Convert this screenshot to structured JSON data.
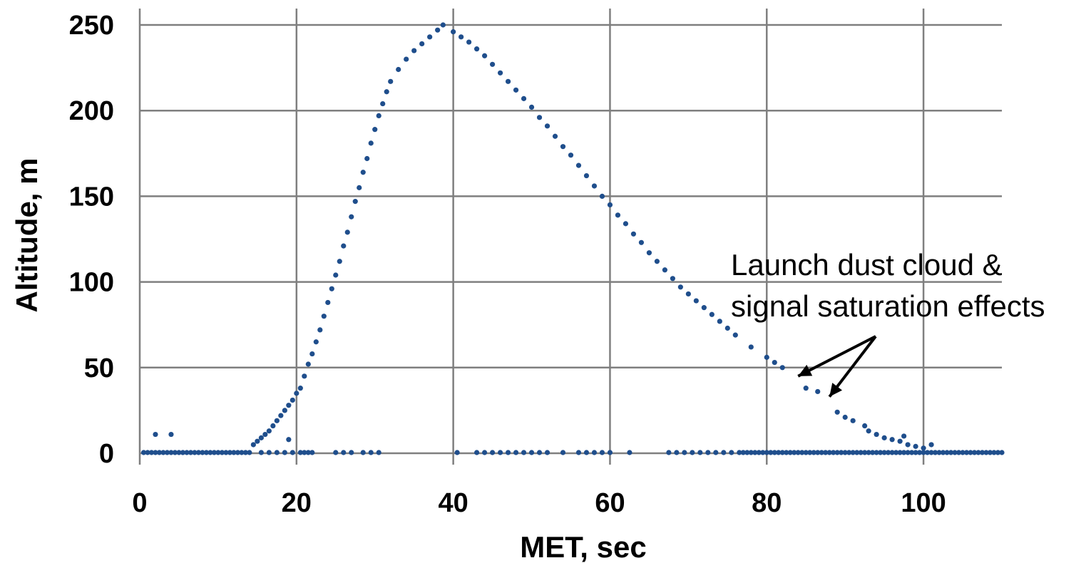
{
  "chart_data": {
    "type": "scatter",
    "xlabel": "MET, sec",
    "ylabel": "Altitude, m",
    "xlim": [
      0,
      110
    ],
    "ylim": [
      0,
      250
    ],
    "x_ticks": [
      "0",
      "20",
      "40",
      "60",
      "80",
      "100"
    ],
    "y_ticks": [
      "0",
      "50",
      "100",
      "150",
      "200",
      "250"
    ],
    "grid": true,
    "color": "#1f4e8c",
    "annotation": {
      "lines": [
        "Launch dust cloud &",
        "signal saturation effects"
      ],
      "arrow_targets": [
        [
          84,
          45
        ],
        [
          88,
          33
        ]
      ]
    },
    "trajectory": [
      [
        14.5,
        5
      ],
      [
        15,
        7
      ],
      [
        15.5,
        9
      ],
      [
        16,
        11
      ],
      [
        16.5,
        13
      ],
      [
        17,
        16
      ],
      [
        17.5,
        19
      ],
      [
        18,
        22
      ],
      [
        18.5,
        25
      ],
      [
        19,
        28
      ],
      [
        19.5,
        31
      ],
      [
        20,
        35
      ],
      [
        20.5,
        38
      ],
      [
        21,
        45
      ],
      [
        21.5,
        52
      ],
      [
        22,
        58
      ],
      [
        22.5,
        65
      ],
      [
        23,
        72
      ],
      [
        23.5,
        80
      ],
      [
        24,
        88
      ],
      [
        24.5,
        96
      ],
      [
        25,
        104
      ],
      [
        25.5,
        112
      ],
      [
        26,
        121
      ],
      [
        26.5,
        129
      ],
      [
        27,
        138
      ],
      [
        27.5,
        147
      ],
      [
        28,
        155
      ],
      [
        28.5,
        164
      ],
      [
        29,
        172
      ],
      [
        29.5,
        181
      ],
      [
        30,
        189
      ],
      [
        30.5,
        197
      ],
      [
        31,
        204
      ],
      [
        31.5,
        211
      ],
      [
        32,
        217
      ],
      [
        33,
        224
      ],
      [
        34,
        230
      ],
      [
        35,
        235
      ],
      [
        36,
        239
      ],
      [
        37,
        243
      ],
      [
        38,
        247
      ],
      [
        38.7,
        250
      ],
      [
        40,
        246
      ],
      [
        41,
        243
      ],
      [
        42,
        240
      ],
      [
        43,
        236
      ],
      [
        44,
        232
      ],
      [
        45,
        227
      ],
      [
        46,
        222
      ],
      [
        47,
        217
      ],
      [
        48,
        212
      ],
      [
        49,
        207
      ],
      [
        50,
        202
      ],
      [
        51,
        196
      ],
      [
        52,
        191
      ],
      [
        53,
        185
      ],
      [
        54,
        179
      ],
      [
        55,
        174
      ],
      [
        56,
        168
      ],
      [
        57,
        162
      ],
      [
        58,
        156
      ],
      [
        59,
        150
      ],
      [
        60,
        145
      ],
      [
        61,
        139
      ],
      [
        62,
        134
      ],
      [
        63,
        128
      ],
      [
        64,
        123
      ],
      [
        65,
        117
      ],
      [
        66,
        112
      ],
      [
        67,
        107
      ],
      [
        68,
        102
      ],
      [
        69,
        97
      ],
      [
        70,
        93
      ],
      [
        71,
        89
      ],
      [
        72,
        85
      ],
      [
        73,
        81
      ],
      [
        74,
        77
      ],
      [
        75,
        73
      ],
      [
        76,
        69
      ],
      [
        78,
        62
      ],
      [
        80,
        56
      ],
      [
        81,
        53
      ],
      [
        82,
        50
      ],
      [
        85,
        38
      ],
      [
        86.5,
        36
      ],
      [
        89,
        24
      ],
      [
        90,
        21
      ],
      [
        91,
        19
      ],
      [
        92.5,
        16
      ],
      [
        93,
        13
      ],
      [
        94,
        11
      ],
      [
        95,
        9
      ],
      [
        96,
        8
      ],
      [
        97,
        7
      ],
      [
        98,
        5
      ],
      [
        99,
        4
      ],
      [
        100,
        3
      ],
      [
        101,
        5
      ]
    ],
    "stray_points": [
      [
        2,
        11
      ],
      [
        4,
        11
      ],
      [
        19,
        8
      ],
      [
        97.5,
        10
      ]
    ],
    "baseline_x": [
      0.5,
      1,
      1.5,
      2,
      2.5,
      3,
      3.5,
      4,
      4.5,
      5,
      5.5,
      6,
      6.5,
      7,
      7.5,
      8,
      8.5,
      9,
      9.5,
      10,
      10.5,
      11,
      11.5,
      12,
      12.5,
      13,
      13.5,
      14,
      15.5,
      16.5,
      17.5,
      18.5,
      19.5,
      20.5,
      21,
      21.5,
      22,
      25,
      26,
      27,
      28.5,
      29.5,
      30.5,
      40.5,
      43,
      44,
      45,
      46,
      47,
      48,
      49,
      50,
      51,
      52,
      54,
      56,
      57,
      58,
      59,
      60,
      62.5,
      67.5,
      68.5,
      69.5,
      70.5,
      71.5,
      72.5,
      73.5,
      74.5,
      75.5,
      76.5,
      77,
      77.5,
      78,
      78.5,
      79,
      79.5,
      80,
      80.5,
      81,
      81.5,
      82,
      82.5,
      83,
      83.5,
      84,
      84.5,
      85,
      85.5,
      86,
      86.5,
      87,
      87.5,
      88,
      88.5,
      89,
      89.5,
      90,
      90.5,
      91,
      91.5,
      92,
      92.5,
      93,
      93.5,
      94,
      94.5,
      95,
      95.5,
      96,
      96.5,
      97,
      97.5,
      98,
      98.5,
      99,
      99.5,
      100,
      100.5,
      101,
      101.5,
      102,
      102.5,
      103,
      103.5,
      104,
      104.5,
      105,
      105.5,
      106,
      106.5,
      107,
      107.5,
      108,
      108.5,
      109,
      109.5,
      110
    ]
  }
}
